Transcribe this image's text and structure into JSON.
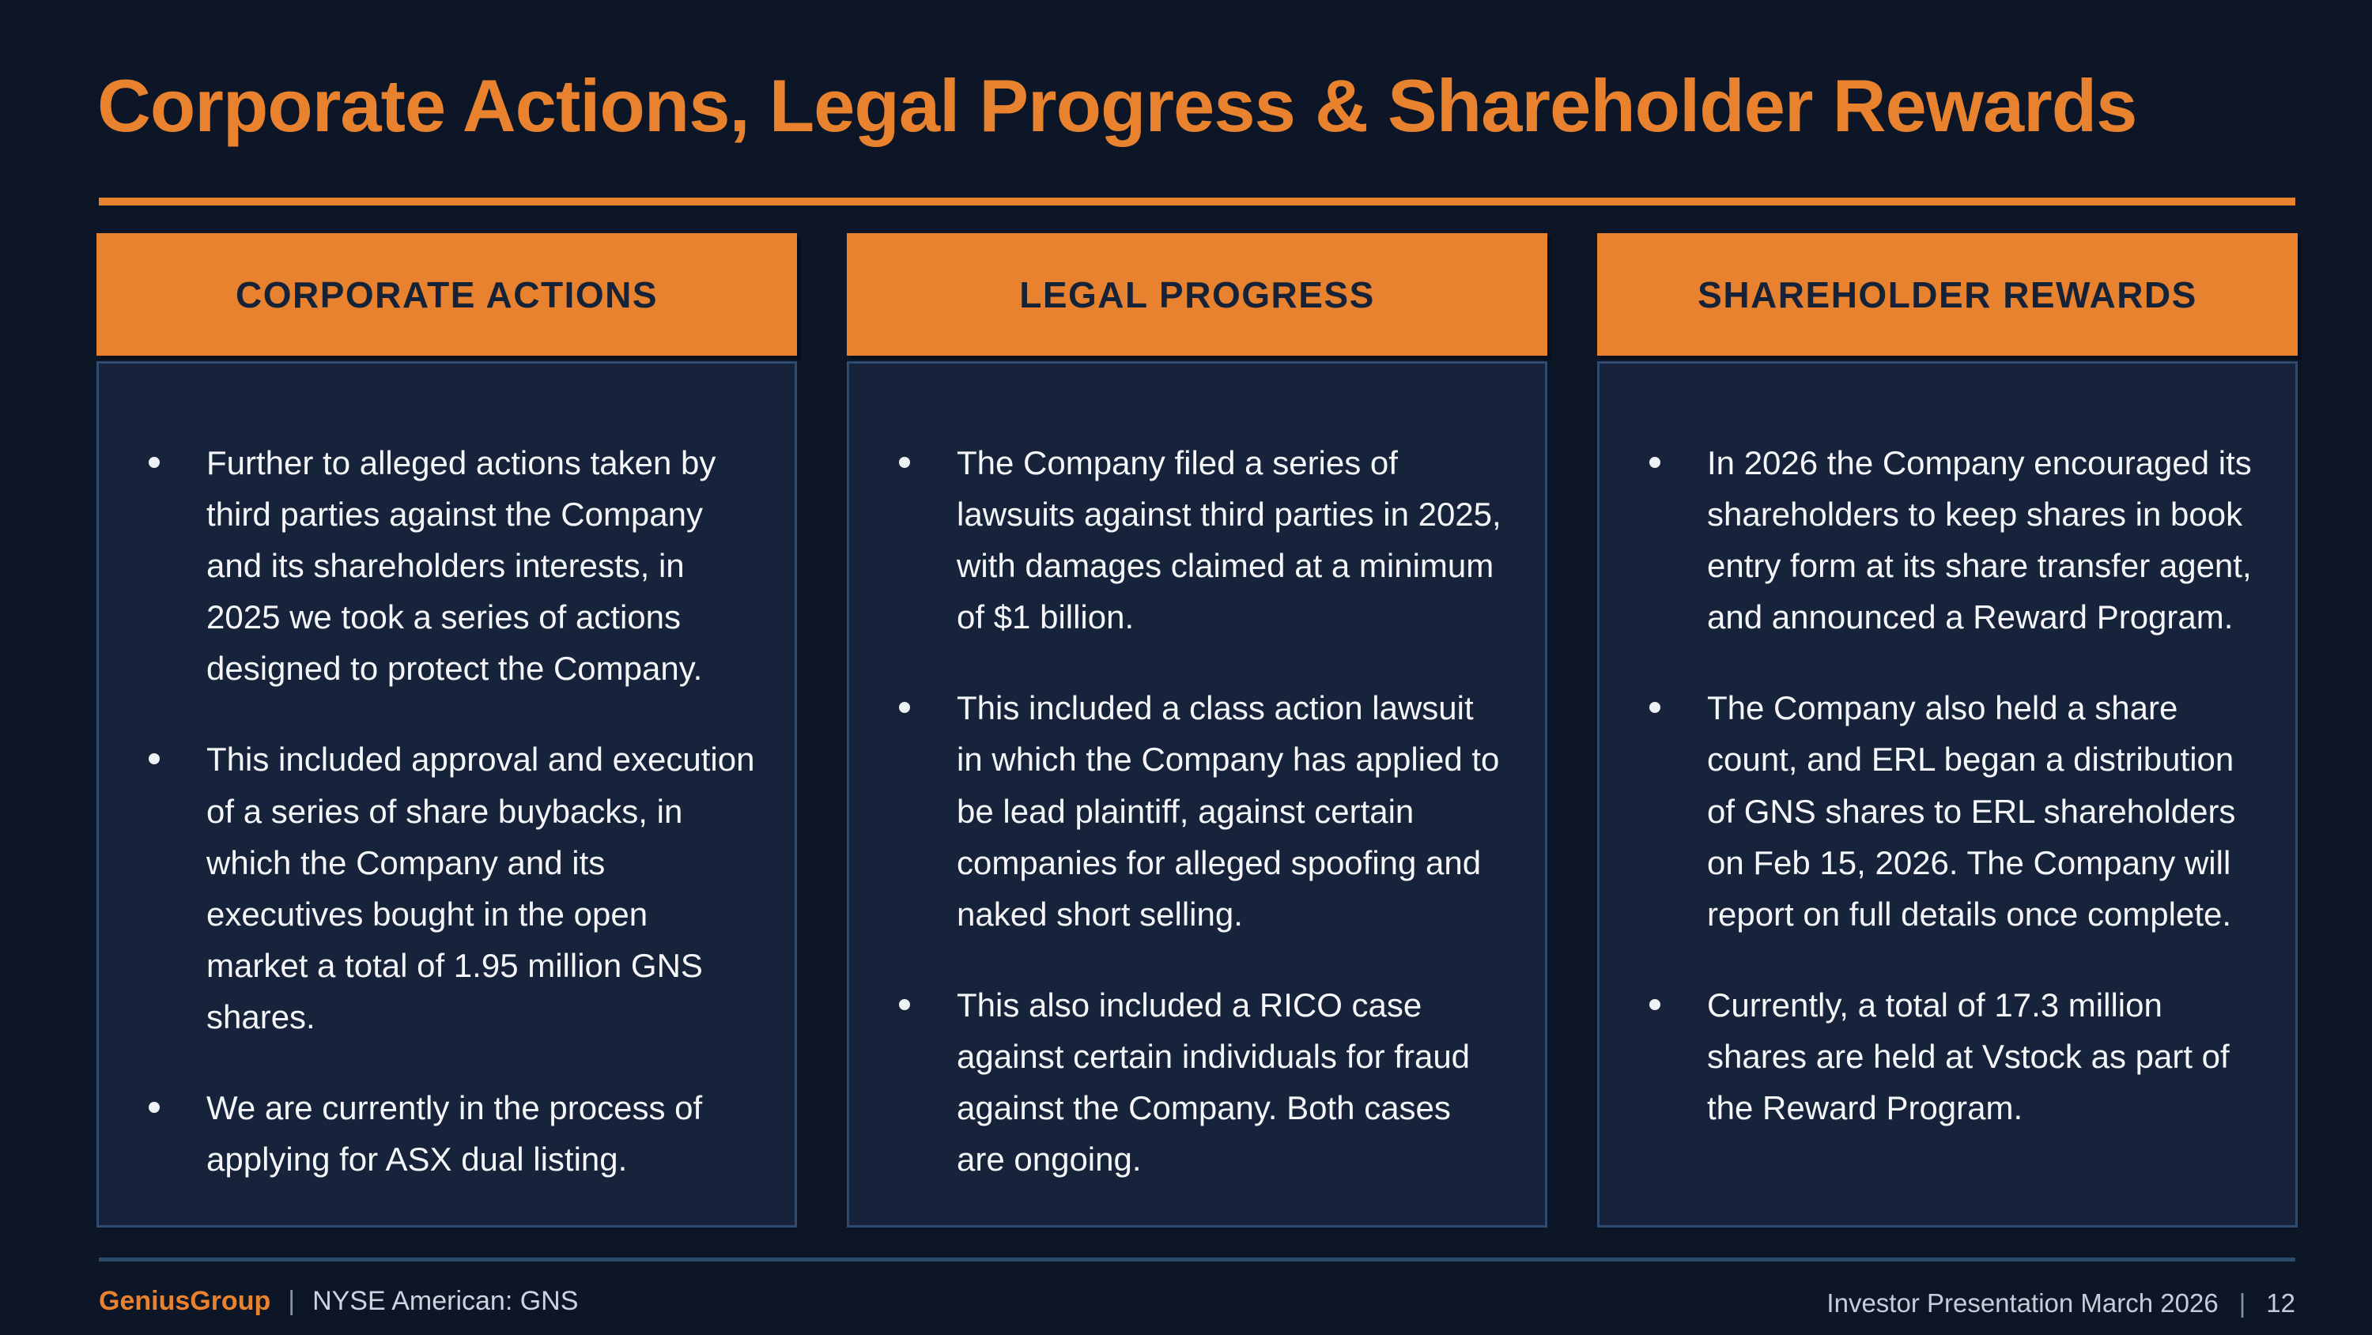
{
  "slide": {
    "title": "Corporate Actions, Legal Progress & Shareholder Rewards",
    "columns": [
      {
        "header": "CORPORATE ACTIONS",
        "bullets": [
          "Further to alleged actions taken by third parties against the Company and its shareholders interests, in 2025 we took a series of actions designed to protect the Company.",
          "This included approval and execution of a series of share buybacks, in which the Company and its executives bought in the open market a total of 1.95 million GNS shares.",
          "We are currently in the process of applying for ASX dual listing."
        ]
      },
      {
        "header": "LEGAL PROGRESS",
        "bullets": [
          "The Company filed a series of lawsuits against third parties in 2025, with damages claimed at a minimum of $1 billion.",
          "This included a class action lawsuit in which the Company has applied to be lead plaintiff, against certain companies for alleged spoofing and naked short selling.",
          "This also included a RICO case against certain individuals for fraud against the Company. Both cases are ongoing."
        ]
      },
      {
        "header": "SHAREHOLDER REWARDS",
        "bullets": [
          "In 2026 the Company encouraged its shareholders to keep shares in book entry form at its share transfer agent, and announced a Reward Program.",
          "The Company also held a share count, and ERL began a distribution of GNS shares to ERL shareholders on Feb 15, 2026. The Company will report on full details once complete.",
          "Currently, a total of 17.3 million shares are held at Vstock as part of the Reward Program."
        ]
      }
    ],
    "footer": {
      "brand": "GeniusGroup",
      "separator": "|",
      "ticker": "NYSE American: GNS",
      "right_label": "Investor Presentation March 2026",
      "right_separator": "|",
      "page_number": "12"
    },
    "colors": {
      "background": "#0c1626",
      "accent_orange": "#e8822e",
      "panel_background": "#16233a",
      "panel_border": "#2f4c70",
      "header_text": "#152238",
      "body_text": "#f4f6f9",
      "footer_text": "#c6cdd8"
    }
  }
}
